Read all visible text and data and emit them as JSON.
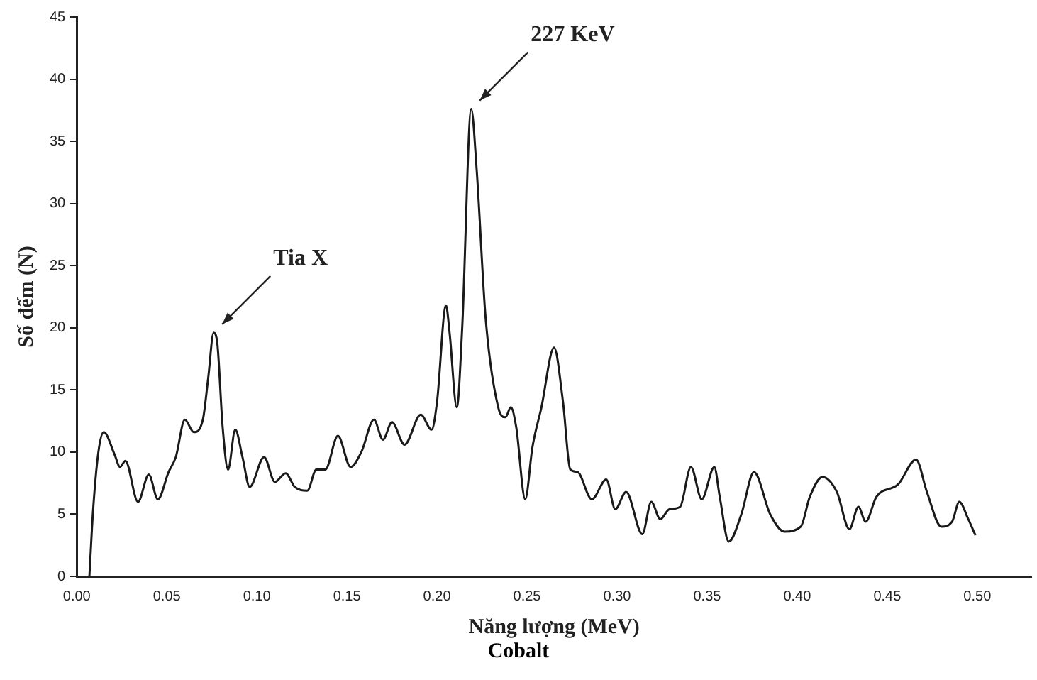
{
  "chart_data": {
    "type": "line",
    "xlabel": "Năng lượng (MeV)",
    "ylabel": "Số đếm (N)",
    "x": [
      0.007,
      0.009,
      0.012,
      0.015,
      0.021,
      0.024,
      0.027,
      0.034,
      0.04,
      0.045,
      0.051,
      0.055,
      0.06,
      0.065,
      0.07,
      0.073,
      0.076,
      0.078,
      0.081,
      0.084,
      0.088,
      0.092,
      0.096,
      0.104,
      0.11,
      0.116,
      0.121,
      0.128,
      0.133,
      0.138,
      0.145,
      0.152,
      0.158,
      0.165,
      0.17,
      0.175,
      0.182,
      0.191,
      0.197,
      0.2,
      0.205,
      0.207,
      0.211,
      0.214,
      0.219,
      0.222,
      0.227,
      0.234,
      0.238,
      0.241,
      0.244,
      0.249,
      0.253,
      0.258,
      0.265,
      0.27,
      0.274,
      0.278,
      0.286,
      0.294,
      0.299,
      0.305,
      0.314,
      0.319,
      0.324,
      0.329,
      0.335,
      0.341,
      0.347,
      0.354,
      0.357,
      0.362,
      0.369,
      0.376,
      0.385,
      0.393,
      0.402,
      0.407,
      0.414,
      0.422,
      0.429,
      0.434,
      0.438,
      0.444,
      0.456,
      0.466,
      0.472,
      0.48,
      0.486,
      0.49,
      0.495,
      0.499
    ],
    "series": [
      {
        "color": "#1a1a1a",
        "values": [
          0,
          5.2,
          10,
          11.6,
          9.8,
          8.8,
          9.3,
          6,
          8.2,
          6.2,
          8.4,
          9.6,
          12.6,
          11.6,
          12.6,
          16,
          19.6,
          18.8,
          12,
          8.6,
          11.8,
          9.6,
          7.2,
          9.6,
          7.6,
          8.3,
          7.2,
          6.9,
          8.6,
          8.6,
          11.3,
          8.8,
          10,
          12.6,
          11,
          12.4,
          10.6,
          13,
          11.8,
          14,
          21.8,
          19.6,
          13.6,
          20,
          37.6,
          32.8,
          20.8,
          13.6,
          12.8,
          13.6,
          12,
          6.2,
          10.4,
          13.6,
          18.4,
          14,
          8.6,
          8.4,
          6.2,
          7.8,
          5.4,
          6.8,
          3.4,
          6,
          4.6,
          5.4,
          5.6,
          8.8,
          6.2,
          8.8,
          6.4,
          2.8,
          5,
          8.4,
          5,
          3.6,
          4,
          6.4,
          8,
          6.8,
          3.8,
          5.6,
          4.4,
          6.4,
          7.4,
          9.4,
          6.8,
          4,
          4.4,
          6,
          4.6,
          3.3
        ]
      }
    ],
    "xlim": [
      0,
      0.53
    ],
    "xticks": [
      {
        "value": 0,
        "label": "0.00"
      },
      0.05,
      {
        "value": 0.1,
        "label": "0.10"
      },
      0.15,
      {
        "value": 0.2,
        "label": "0.20"
      },
      0.25,
      {
        "value": 0.3,
        "label": "0.30"
      },
      0.35,
      {
        "value": 0.4,
        "label": "0.40"
      },
      0.45,
      {
        "value": 0.5,
        "label": "0.50"
      }
    ],
    "ylim": [
      0,
      45
    ],
    "yticks": [
      0,
      5,
      10,
      15,
      20,
      25,
      30,
      35,
      40,
      45
    ],
    "grid": false,
    "legend": false,
    "marker": "none",
    "line_style": "solid",
    "annotations": [
      {
        "text": "227 KeV",
        "x": 0.219,
        "y": 37.6
      },
      {
        "text": "Tia X",
        "x": 0.076,
        "y": 19.6
      },
      "Cobalt"
    ]
  }
}
